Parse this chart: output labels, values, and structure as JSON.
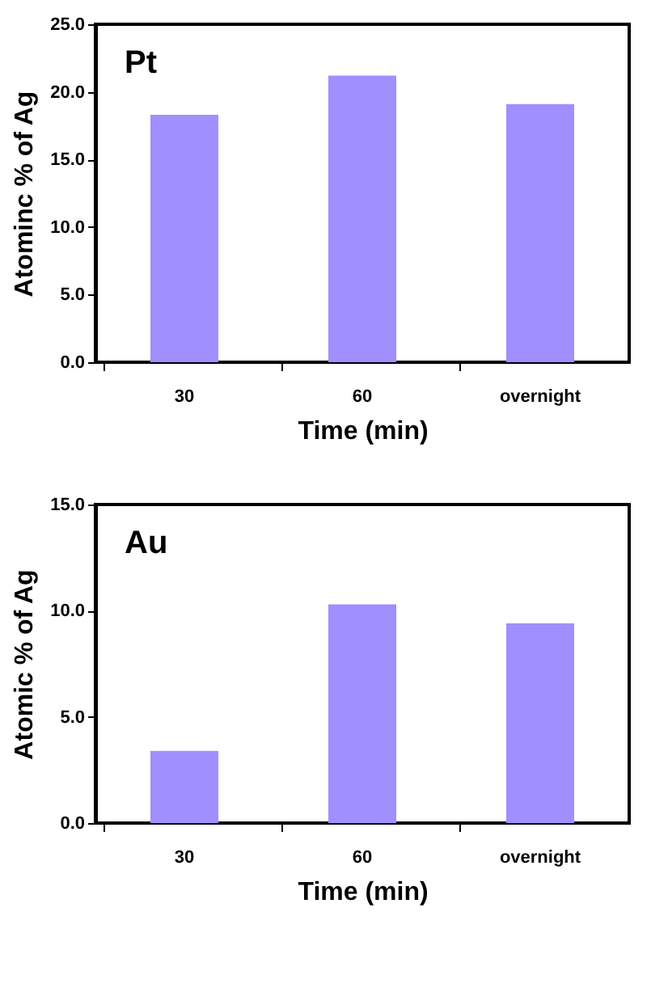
{
  "chart_data": [
    {
      "type": "bar",
      "categories": [
        "30",
        "60",
        "overnight"
      ],
      "values": [
        18.3,
        21.2,
        19.1
      ],
      "color": "#9f8fff",
      "xlabel": "Time (min)",
      "ylabel": "Atominc % of Ag",
      "ylim": [
        0,
        25
      ],
      "yticks": [
        {
          "value": 0,
          "label": "0.0"
        },
        {
          "value": 5,
          "label": "5.0"
        },
        {
          "value": 10,
          "label": "10.0"
        },
        {
          "value": 15,
          "label": "15.0"
        },
        {
          "value": 20,
          "label": "20.0"
        },
        {
          "value": 25,
          "label": "25.0"
        }
      ],
      "annotations": [
        "Pt"
      ]
    },
    {
      "type": "bar",
      "categories": [
        "30",
        "60",
        "overnight"
      ],
      "values": [
        3.4,
        10.3,
        9.4
      ],
      "color": "#9f8fff",
      "xlabel": "Time (min)",
      "ylabel": "Atomic % of Ag",
      "ylim": [
        0,
        15
      ],
      "yticks": [
        {
          "value": 0,
          "label": "0.0"
        },
        {
          "value": 5,
          "label": "5.0"
        },
        {
          "value": 10,
          "label": "10.0"
        },
        {
          "value": 15,
          "label": "15.0"
        }
      ],
      "annotations": [
        "Au"
      ]
    }
  ]
}
